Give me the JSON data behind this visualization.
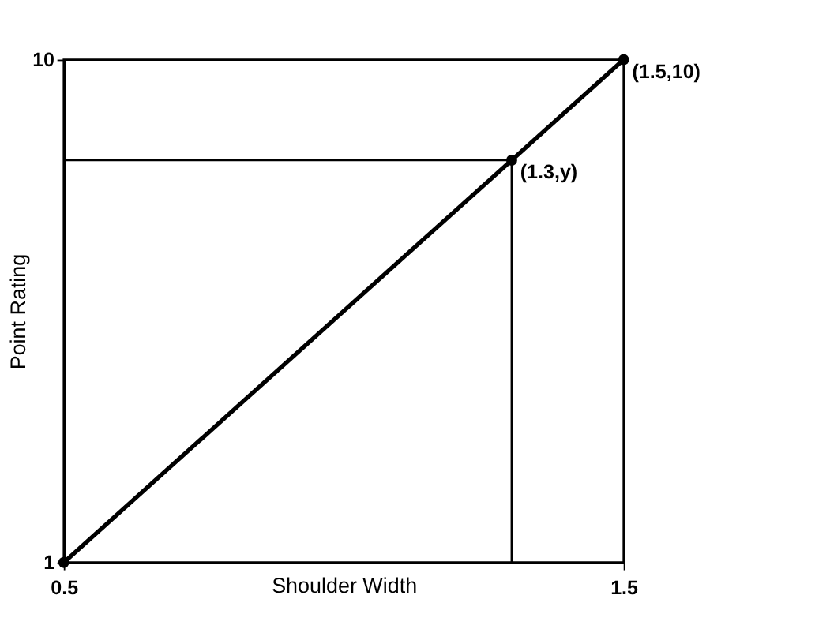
{
  "chart_data": {
    "type": "line",
    "xlabel": "Shoulder Width",
    "ylabel": "Point Rating",
    "x": [
      0.5,
      1.3,
      1.5
    ],
    "series": [
      {
        "color": "#000000",
        "values": [
          1,
          8.2,
          10
        ]
      }
    ],
    "xlim": [
      0.5,
      1.5
    ],
    "xticks": [
      0.5,
      1.5
    ],
    "ylim": [
      1,
      10
    ],
    "yticks": [
      1,
      10
    ],
    "marker": "circle",
    "grid": false,
    "ref_lines": [
      {
        "axis": "x",
        "value": 1.3,
        "label": null
      },
      {
        "axis": "y",
        "value": 8.2,
        "label": null
      }
    ],
    "annotations": [
      {
        "text": "(1.5,10)",
        "x": 1.5,
        "y": 10
      },
      {
        "text": "(1.3,y)",
        "x": 1.3,
        "y": 8.2
      }
    ]
  }
}
